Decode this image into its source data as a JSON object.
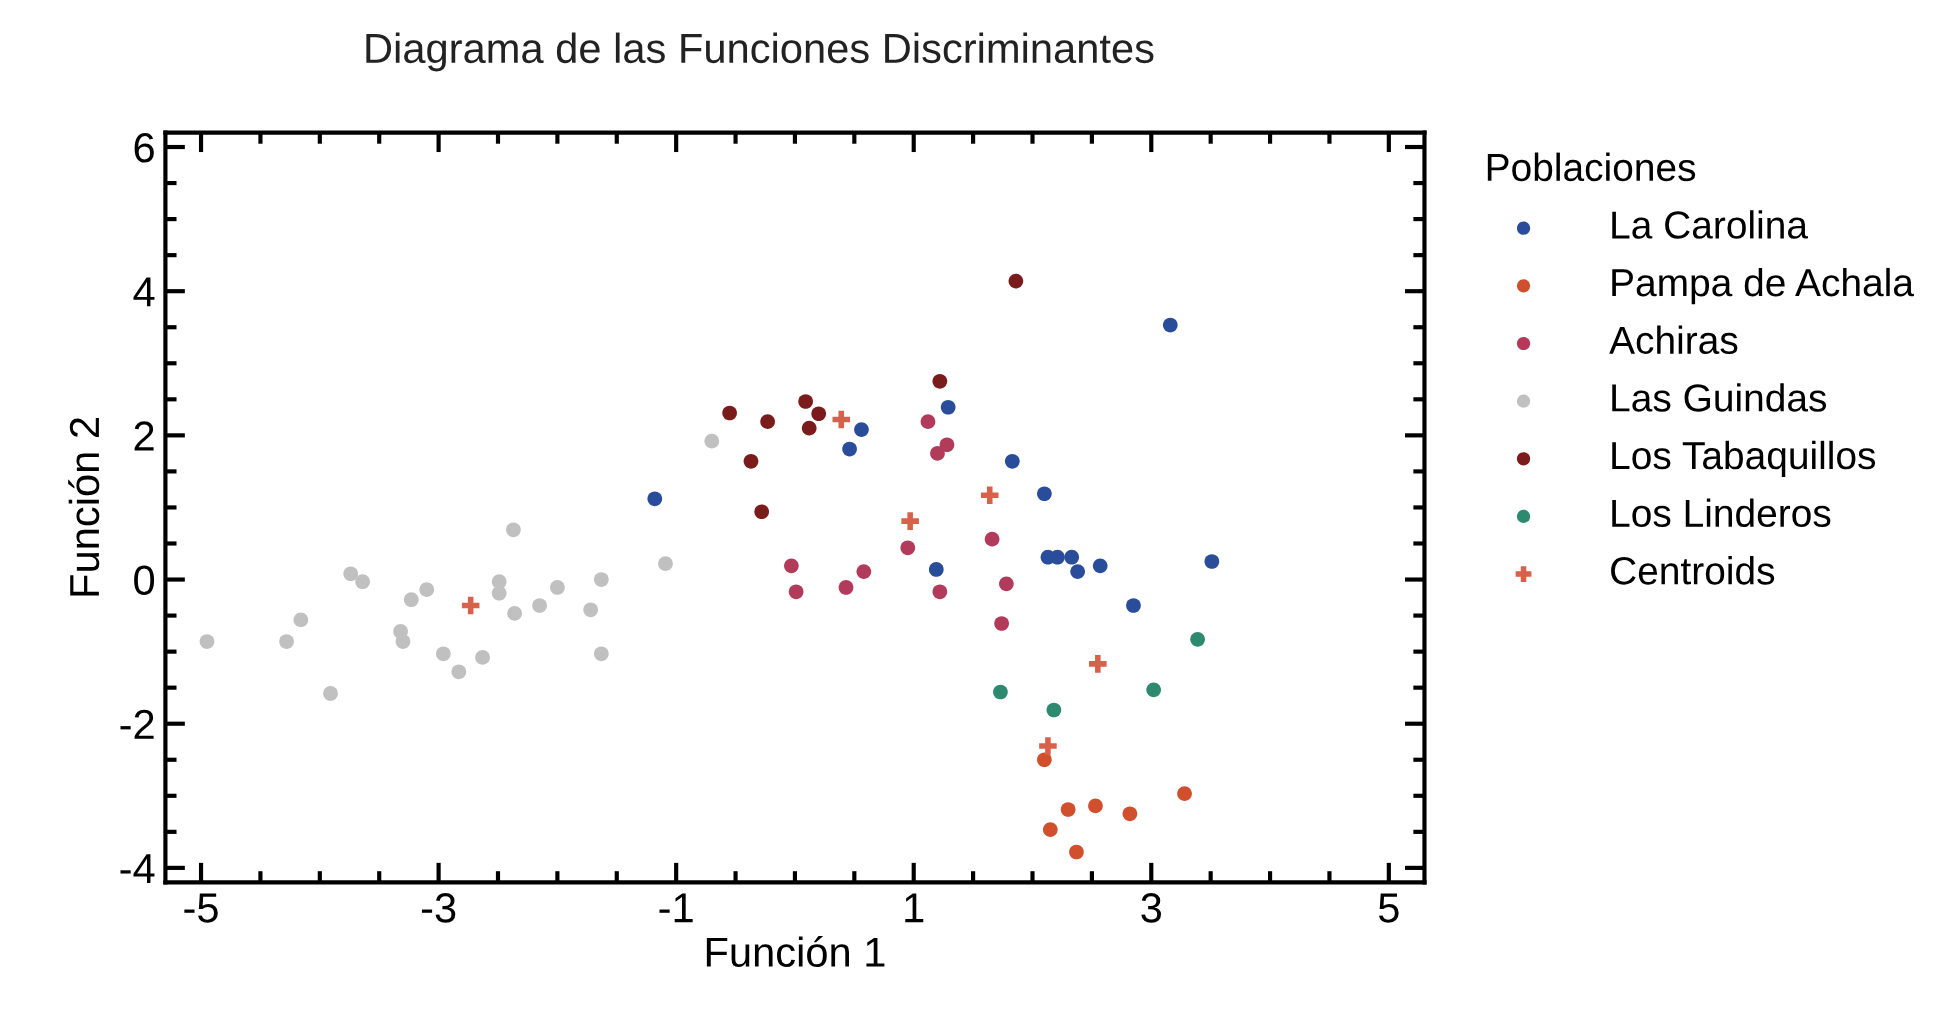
{
  "chart_data": {
    "type": "scatter",
    "title": "Diagrama de las Funciones Discriminantes",
    "xlabel": "Función 1",
    "ylabel": "Función 2",
    "legend_title": "Poblaciones",
    "legend": "right",
    "grid": false,
    "marker": "circle",
    "xlim": [
      -5.3,
      5.3
    ],
    "ylim": [
      -4.2,
      6.2
    ],
    "xticks": [
      -5,
      -3,
      -1,
      1,
      3,
      5
    ],
    "yticks": [
      -4,
      -2,
      0,
      2,
      4,
      6
    ],
    "series": [
      {
        "name": "La Carolina",
        "color": "#2a4d9b",
        "x": [
          -1.18,
          0.56,
          0.46,
          1.29,
          1.83,
          1.19,
          2.1,
          2.13,
          2.21,
          2.33,
          2.38,
          2.57,
          2.85,
          3.51,
          3.16
        ],
        "values": [
          1.12,
          2.08,
          1.81,
          2.39,
          1.64,
          0.14,
          1.19,
          0.31,
          0.31,
          0.31,
          0.11,
          0.19,
          -0.36,
          0.25,
          3.53
        ]
      },
      {
        "name": "Pampa de Achala",
        "color": "#d0502e",
        "x": [
          2.1,
          3.28,
          2.3,
          2.53,
          2.82,
          2.15,
          2.37
        ],
        "values": [
          -2.5,
          -2.97,
          -3.19,
          -3.14,
          -3.25,
          -3.47,
          -3.78
        ]
      },
      {
        "name": "Achiras",
        "color": "#b23a5a",
        "x": [
          1.12,
          1.2,
          1.28,
          -0.03,
          0.01,
          0.58,
          0.43,
          0.95,
          1.22,
          1.66,
          1.78,
          1.74
        ],
        "values": [
          2.19,
          1.75,
          1.87,
          0.19,
          -0.17,
          0.11,
          -0.11,
          0.44,
          -0.17,
          0.56,
          -0.06,
          -0.61
        ]
      },
      {
        "name": "Las Guindas",
        "color": "#c0c0c0",
        "x": [
          -4.95,
          -4.28,
          -4.16,
          -3.91,
          -3.74,
          -3.64,
          -3.32,
          -3.3,
          -3.23,
          -3.1,
          -2.96,
          -2.83,
          -2.63,
          -2.49,
          -2.49,
          -2.37,
          -2.36,
          -2.15,
          -2.0,
          -1.72,
          -1.63,
          -1.63,
          -1.09,
          -0.7
        ],
        "values": [
          -0.86,
          -0.86,
          -0.56,
          -1.58,
          0.08,
          -0.03,
          -0.72,
          -0.86,
          -0.28,
          -0.14,
          -1.03,
          -1.28,
          -1.08,
          -0.03,
          -0.19,
          0.69,
          -0.47,
          -0.36,
          -0.11,
          -0.42,
          0.0,
          -1.03,
          0.22,
          1.92
        ]
      },
      {
        "name": "Los Tabaquillos",
        "color": "#7b1c1c",
        "x": [
          -0.55,
          -0.23,
          0.09,
          0.12,
          0.2,
          -0.37,
          -0.28,
          1.22,
          1.86
        ],
        "values": [
          2.31,
          2.19,
          2.47,
          2.1,
          2.3,
          1.64,
          0.94,
          2.75,
          4.14
        ]
      },
      {
        "name": "Los Linderos",
        "color": "#2e8a6e",
        "x": [
          1.73,
          2.18,
          3.02,
          3.39
        ],
        "values": [
          -1.56,
          -1.81,
          -1.53,
          -0.83
        ]
      },
      {
        "name": "Centroids",
        "color": "#d9604a",
        "marker": "cross",
        "x": [
          -2.73,
          0.39,
          0.97,
          1.64,
          2.55,
          2.13
        ],
        "values": [
          -0.36,
          2.22,
          0.81,
          1.17,
          -1.17,
          -2.31
        ]
      }
    ]
  }
}
